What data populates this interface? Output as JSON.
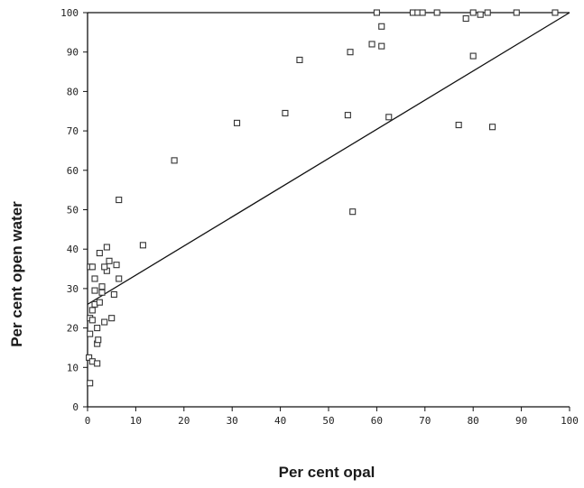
{
  "chart_data": {
    "type": "scatter",
    "title": "",
    "xlabel": "Per cent opal",
    "ylabel": "Per cent open water",
    "xlim": [
      0,
      100
    ],
    "ylim": [
      0,
      100
    ],
    "x_ticks": [
      0,
      10,
      20,
      30,
      40,
      50,
      60,
      70,
      80,
      90,
      100
    ],
    "y_ticks": [
      0,
      10,
      20,
      30,
      40,
      50,
      60,
      70,
      80,
      90,
      100
    ],
    "grid": false,
    "marker": "hollow-square",
    "series": [
      {
        "points": [
          [
            0.5,
            6
          ],
          [
            0.3,
            12.5
          ],
          [
            1,
            11.5
          ],
          [
            2,
            11
          ],
          [
            0.5,
            18.5
          ],
          [
            0.5,
            22.5
          ],
          [
            1,
            22
          ],
          [
            1,
            24.5
          ],
          [
            1.5,
            26
          ],
          [
            2,
            16
          ],
          [
            2.2,
            17
          ],
          [
            2,
            20
          ],
          [
            2.5,
            26.5
          ],
          [
            3,
            29
          ],
          [
            3,
            30.5
          ],
          [
            1.5,
            29.5
          ],
          [
            1.5,
            32.5
          ],
          [
            0.5,
            35.5
          ],
          [
            1,
            35.5
          ],
          [
            3.5,
            21.5
          ],
          [
            5,
            22.5
          ],
          [
            5.5,
            28.5
          ],
          [
            6.5,
            32.5
          ],
          [
            4,
            34.5
          ],
          [
            3.5,
            35.5
          ],
          [
            4.5,
            37
          ],
          [
            6,
            36
          ],
          [
            2.5,
            39
          ],
          [
            4,
            40.5
          ],
          [
            6.5,
            52.5
          ],
          [
            11.5,
            41
          ],
          [
            18,
            62.5
          ],
          [
            31,
            72
          ],
          [
            41,
            74.5
          ],
          [
            44,
            88
          ],
          [
            54,
            74
          ],
          [
            54.5,
            90
          ],
          [
            55,
            49.5
          ],
          [
            59,
            92
          ],
          [
            61,
            91.5
          ],
          [
            61,
            96.5
          ],
          [
            62.5,
            73.5
          ],
          [
            60,
            100
          ],
          [
            67.5,
            100
          ],
          [
            68.5,
            100
          ],
          [
            69.5,
            100
          ],
          [
            72.5,
            100
          ],
          [
            80,
            100
          ],
          [
            81.5,
            99.5
          ],
          [
            83,
            100
          ],
          [
            89,
            100
          ],
          [
            97,
            100
          ],
          [
            78.5,
            98.5
          ],
          [
            80,
            89
          ],
          [
            77,
            71.5
          ],
          [
            84,
            71
          ]
        ]
      }
    ],
    "reference_lines": [
      {
        "from": [
          0,
          100
        ],
        "to": [
          100,
          100
        ]
      },
      {
        "from": [
          0,
          26
        ],
        "to": [
          100,
          100
        ]
      }
    ]
  }
}
